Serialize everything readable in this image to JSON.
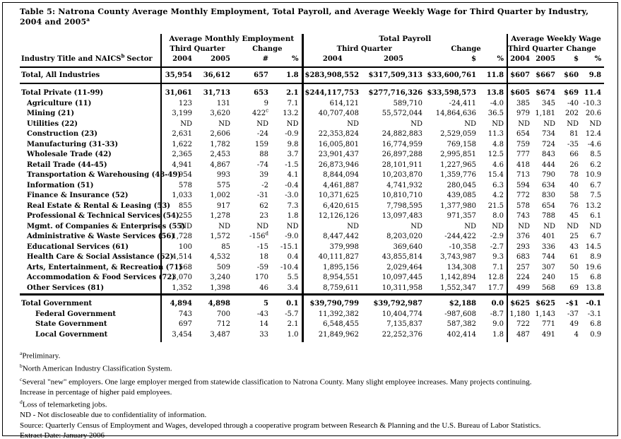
{
  "colors": {
    "background": "#ffffff",
    "text": "#000000",
    "rule": "#000000"
  },
  "title": "Table 5: Natrona County Average Monthly Employment, Total Payroll, and Average Weekly Wage for Third Quarter by Industry, 2004 and 2005",
  "title_sup": "a",
  "header": {
    "industry_label_pre": "Industry Title and NAICS",
    "industry_label_sup": "b",
    "industry_label_post": "Sector",
    "sections": [
      "Average Monthly Employment",
      "Total Payroll",
      "Average Weekly Wage"
    ],
    "third_quarter": "Third Quarter",
    "change": "Change",
    "y2004": "2004",
    "y2005": "2005",
    "hash": "#",
    "dollar": "$",
    "pct": "%"
  },
  "table": {
    "rows": [
      {
        "label": "Total, All Industries",
        "indent": 0,
        "bold": true,
        "class": "r-total-all",
        "cells": [
          "35,954",
          "36,612",
          "657",
          "1.8",
          "$283,908,552",
          "$317,509,313",
          "$33,600,761",
          "11.8",
          "$607",
          "$667",
          "$60",
          "9.8"
        ]
      },
      {
        "label": "Total Private (11-99)",
        "indent": 0,
        "bold": true,
        "class": "r-gap-top",
        "cells": [
          "31,061",
          "31,713",
          "653",
          "2.1",
          "$244,117,753",
          "$277,716,326",
          "$33,598,573",
          "13.8",
          "$605",
          "$674",
          "$69",
          "11.4"
        ]
      },
      {
        "label": "Agriculture (11)",
        "indent": 1,
        "bold": false,
        "cells": [
          "123",
          "131",
          "9",
          "7.1",
          "614,121",
          "589,710",
          "-24,411",
          "-4.0",
          "385",
          "345",
          "-40",
          "-10.3"
        ]
      },
      {
        "label": "Mining (21)",
        "indent": 1,
        "bold": false,
        "sups": {
          "2": "c"
        },
        "cells": [
          "3,199",
          "3,620",
          "422",
          "13.2",
          "40,707,408",
          "55,572,044",
          "14,864,636",
          "36.5",
          "979",
          "1,181",
          "202",
          "20.6"
        ]
      },
      {
        "label": "Utilities (22)",
        "indent": 1,
        "bold": false,
        "cells": [
          "ND",
          "ND",
          "ND",
          "ND",
          "ND",
          "ND",
          "ND",
          "ND",
          "ND",
          "ND",
          "ND",
          "ND"
        ]
      },
      {
        "label": "Construction (23)",
        "indent": 1,
        "bold": false,
        "cells": [
          "2,631",
          "2,606",
          "-24",
          "-0.9",
          "22,353,824",
          "24,882,883",
          "2,529,059",
          "11.3",
          "654",
          "734",
          "81",
          "12.4"
        ]
      },
      {
        "label": "Manufacturing (31-33)",
        "indent": 1,
        "bold": false,
        "cells": [
          "1,622",
          "1,782",
          "159",
          "9.8",
          "16,005,801",
          "16,774,959",
          "769,158",
          "4.8",
          "759",
          "724",
          "-35",
          "-4.6"
        ]
      },
      {
        "label": "Wholesale Trade (42)",
        "indent": 1,
        "bold": false,
        "cells": [
          "2,365",
          "2,453",
          "88",
          "3.7",
          "23,901,437",
          "26,897,288",
          "2,995,851",
          "12.5",
          "777",
          "843",
          "66",
          "8.5"
        ]
      },
      {
        "label": "Retail Trade (44-45)",
        "indent": 1,
        "bold": false,
        "cells": [
          "4,941",
          "4,867",
          "-74",
          "-1.5",
          "26,873,946",
          "28,101,911",
          "1,227,965",
          "4.6",
          "418",
          "444",
          "26",
          "6.2"
        ]
      },
      {
        "label": "Transportation & Warehousing (48-49)",
        "indent": 1,
        "bold": false,
        "cells": [
          "954",
          "993",
          "39",
          "4.1",
          "8,844,094",
          "10,203,870",
          "1,359,776",
          "15.4",
          "713",
          "790",
          "78",
          "10.9"
        ]
      },
      {
        "label": "Information (51)",
        "indent": 1,
        "bold": false,
        "cells": [
          "578",
          "575",
          "-2",
          "-0.4",
          "4,461,887",
          "4,741,932",
          "280,045",
          "6.3",
          "594",
          "634",
          "40",
          "6.7"
        ]
      },
      {
        "label": "Finance & Insurance (52)",
        "indent": 1,
        "bold": false,
        "cells": [
          "1,033",
          "1,002",
          "-31",
          "-3.0",
          "10,371,625",
          "10,810,710",
          "439,085",
          "4.2",
          "772",
          "830",
          "58",
          "7.5"
        ]
      },
      {
        "label": "Real Estate & Rental & Leasing (53)",
        "indent": 1,
        "bold": false,
        "cells": [
          "855",
          "917",
          "62",
          "7.3",
          "6,420,615",
          "7,798,595",
          "1,377,980",
          "21.5",
          "578",
          "654",
          "76",
          "13.2"
        ]
      },
      {
        "label": "Professional & Technical Services (54)",
        "indent": 1,
        "bold": false,
        "cells": [
          "1,255",
          "1,278",
          "23",
          "1.8",
          "12,126,126",
          "13,097,483",
          "971,357",
          "8.0",
          "743",
          "788",
          "45",
          "6.1"
        ]
      },
      {
        "label": "Mgmt. of Companies & Enterprises (55)",
        "indent": 1,
        "bold": false,
        "cells": [
          "ND",
          "ND",
          "ND",
          "ND",
          "ND",
          "ND",
          "ND",
          "ND",
          "ND",
          "ND",
          "ND",
          "ND"
        ]
      },
      {
        "label": "Administrative & Waste Services (56)",
        "indent": 1,
        "bold": false,
        "sups": {
          "2": "d"
        },
        "cells": [
          "1,728",
          "1,572",
          "-156",
          "-9.0",
          "8,447,442",
          "8,203,020",
          "-244,422",
          "-2.9",
          "376",
          "401",
          "25",
          "6.7"
        ]
      },
      {
        "label": "Educational Services (61)",
        "indent": 1,
        "bold": false,
        "cells": [
          "100",
          "85",
          "-15",
          "-15.1",
          "379,998",
          "369,640",
          "-10,358",
          "-2.7",
          "293",
          "336",
          "43",
          "14.5"
        ]
      },
      {
        "label": "Health Care & Social Assistance (62)",
        "indent": 1,
        "bold": false,
        "cells": [
          "4,514",
          "4,532",
          "18",
          "0.4",
          "40,111,827",
          "43,855,814",
          "3,743,987",
          "9.3",
          "683",
          "744",
          "61",
          "8.9"
        ]
      },
      {
        "label": "Arts, Entertainment, & Recreation (71)",
        "indent": 1,
        "bold": false,
        "cells": [
          "568",
          "509",
          "-59",
          "-10.4",
          "1,895,156",
          "2,029,464",
          "134,308",
          "7.1",
          "257",
          "307",
          "50",
          "19.6"
        ]
      },
      {
        "label": "Accommodation & Food Services (72)",
        "indent": 1,
        "bold": false,
        "cells": [
          "3,070",
          "3,240",
          "170",
          "5.5",
          "8,954,551",
          "10,097,445",
          "1,142,894",
          "12.8",
          "224",
          "240",
          "15",
          "6.8"
        ]
      },
      {
        "label": "Other Services (81)",
        "indent": 1,
        "bold": false,
        "cells": [
          "1,352",
          "1,398",
          "46",
          "3.4",
          "8,759,611",
          "10,311,958",
          "1,552,347",
          "17.7",
          "499",
          "568",
          "69",
          "13.8"
        ]
      },
      {
        "label": "Total Government",
        "indent": 0,
        "bold": true,
        "class": "r-gov-top",
        "cells": [
          "4,894",
          "4,898",
          "5",
          "0.1",
          "$39,790,799",
          "$39,792,987",
          "$2,188",
          "0.0",
          "$625",
          "$625",
          "-$1",
          "-0.1"
        ]
      },
      {
        "label": "Federal Government",
        "indent": 2,
        "bold": false,
        "cells": [
          "743",
          "700",
          "-43",
          "-5.7",
          "11,392,382",
          "10,404,774",
          "-987,608",
          "-8.7",
          "1,180",
          "1,143",
          "-37",
          "-3.1"
        ]
      },
      {
        "label": "State Government",
        "indent": 2,
        "bold": false,
        "cells": [
          "697",
          "712",
          "14",
          "2.1",
          "6,548,455",
          "7,135,837",
          "587,382",
          "9.0",
          "722",
          "771",
          "49",
          "6.8"
        ]
      },
      {
        "label": "Local Government",
        "indent": 2,
        "bold": false,
        "class": "r-last",
        "cells": [
          "3,454",
          "3,487",
          "33",
          "1.0",
          "21,849,962",
          "22,252,376",
          "402,414",
          "1.8",
          "487",
          "491",
          "4",
          "0.9"
        ]
      }
    ]
  },
  "footnotes": [
    {
      "sup": "a",
      "text": "Preliminary."
    },
    {
      "sup": "b",
      "text": "North American Industry Classification System."
    },
    {
      "sup": "c",
      "text": "Several \"new\" employers. One large employer merged from statewide classification to Natrona County. Many slight employee increases. Many projects continuing."
    },
    {
      "sup": "",
      "text": "Increase in percentage of higher paid employees."
    },
    {
      "sup": "d",
      "text": "Loss of telemarketing jobs."
    },
    {
      "sup": "",
      "text": "ND - Not discloseable due to confidentiality of information."
    },
    {
      "sup": "",
      "text": "Source: Quarterly Census of Employment and Wages, developed through a cooperative program between Research & Planning and the U.S. Bureau of Labor Statistics."
    },
    {
      "sup": "",
      "text": "Extract Date: January 2006"
    }
  ]
}
